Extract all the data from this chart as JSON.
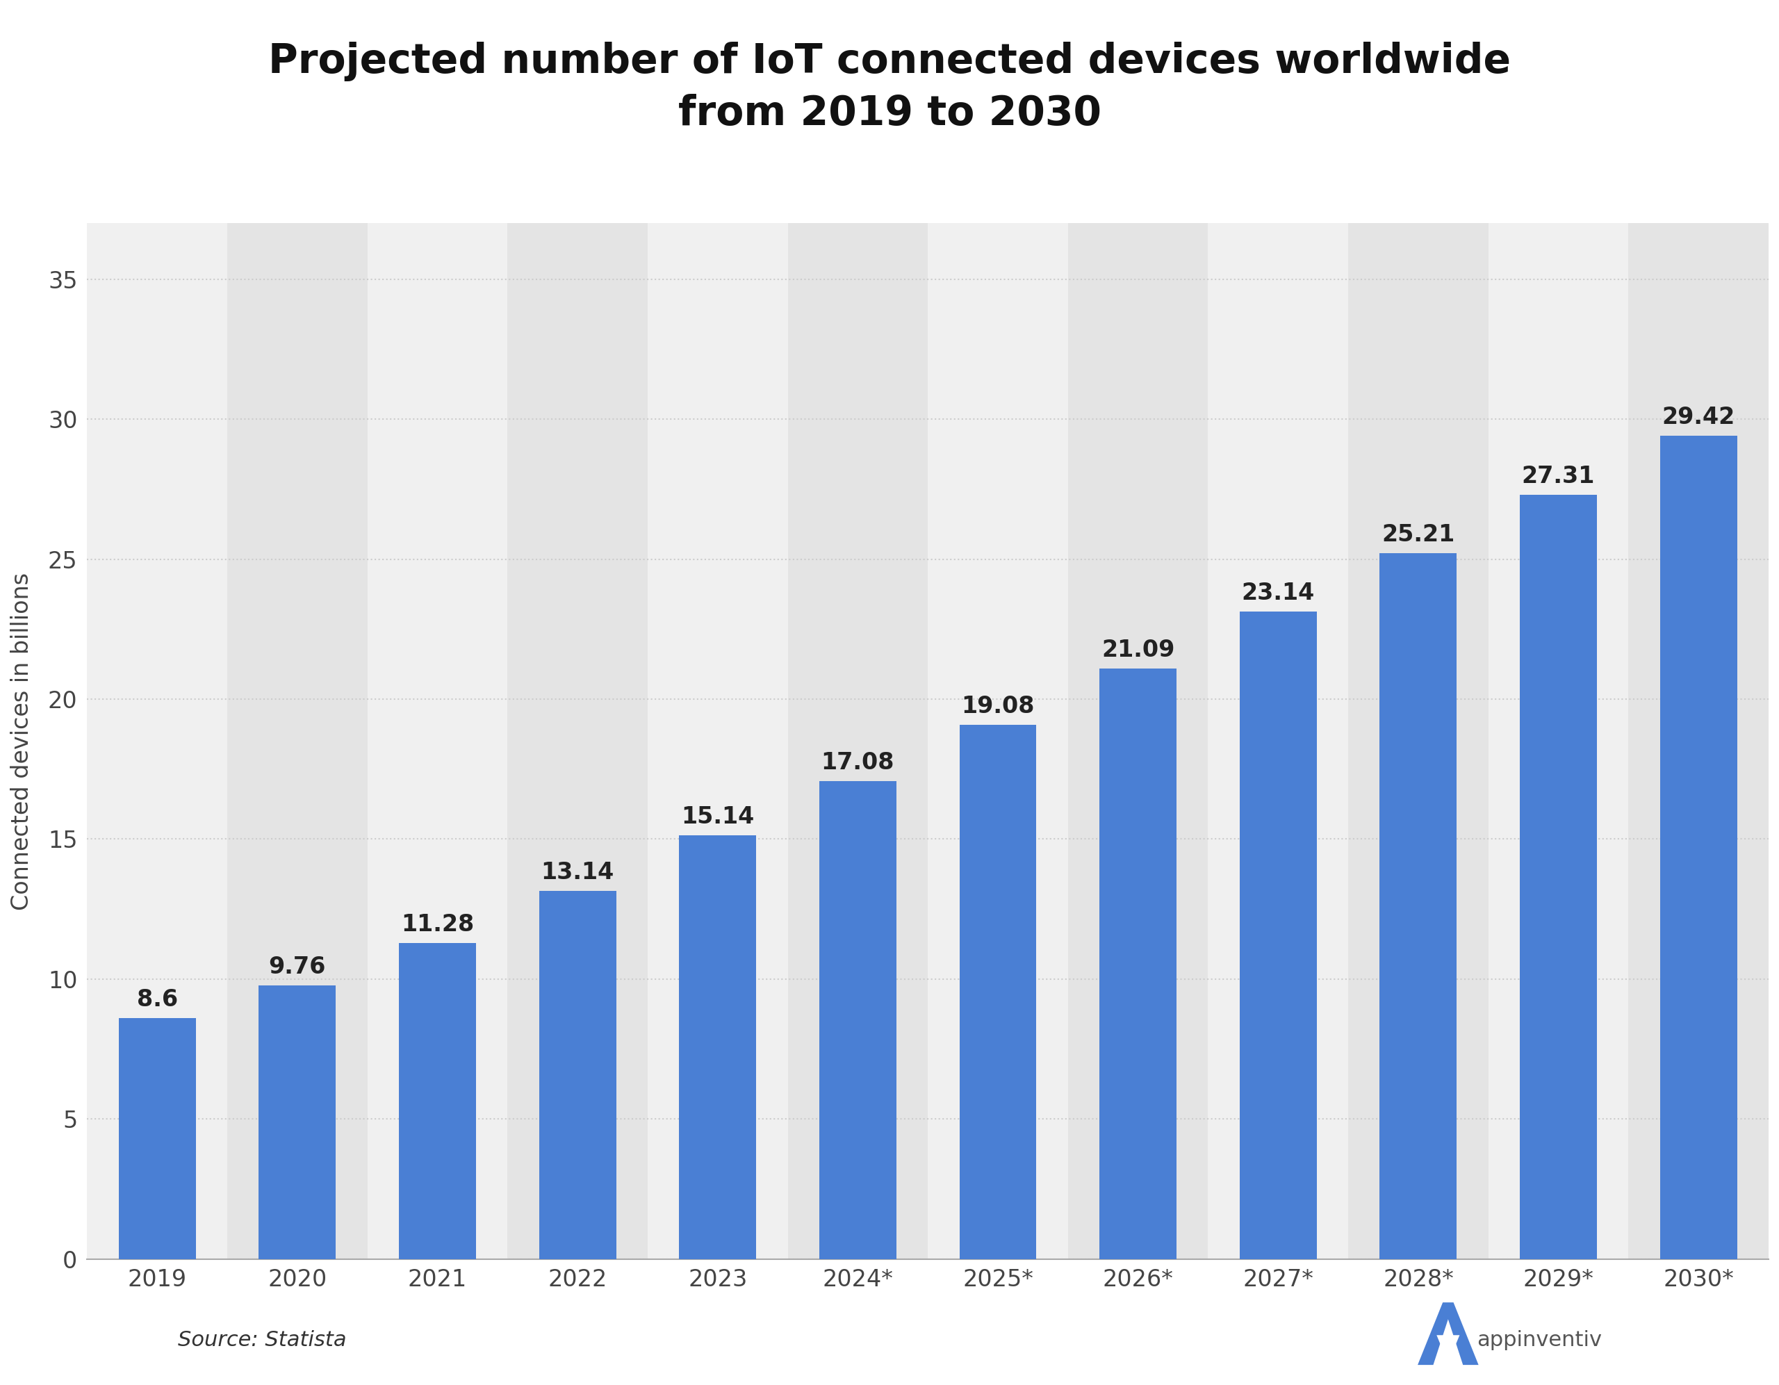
{
  "title": "Projected number of IoT connected devices worldwide\nfrom 2019 to 2030",
  "ylabel": "Connected devices in billions",
  "years": [
    "2019",
    "2020",
    "2021",
    "2022",
    "2023",
    "2024*",
    "2025*",
    "2026*",
    "2027*",
    "2028*",
    "2029*",
    "2030*"
  ],
  "values": [
    8.6,
    9.76,
    11.28,
    13.14,
    15.14,
    17.08,
    19.08,
    21.09,
    23.14,
    25.21,
    27.31,
    29.42
  ],
  "bar_color": "#4a7fd4",
  "background_color": "#ffffff",
  "plot_bg_color": "#f0f0f0",
  "alt_col_color": "#e4e4e4",
  "grid_color": "#cccccc",
  "yticks": [
    0,
    5,
    10,
    15,
    20,
    25,
    30,
    35
  ],
  "ylim": [
    0,
    37
  ],
  "source_text": "Source: Statista",
  "title_fontsize": 42,
  "label_fontsize": 24,
  "tick_fontsize": 24,
  "value_fontsize": 24
}
